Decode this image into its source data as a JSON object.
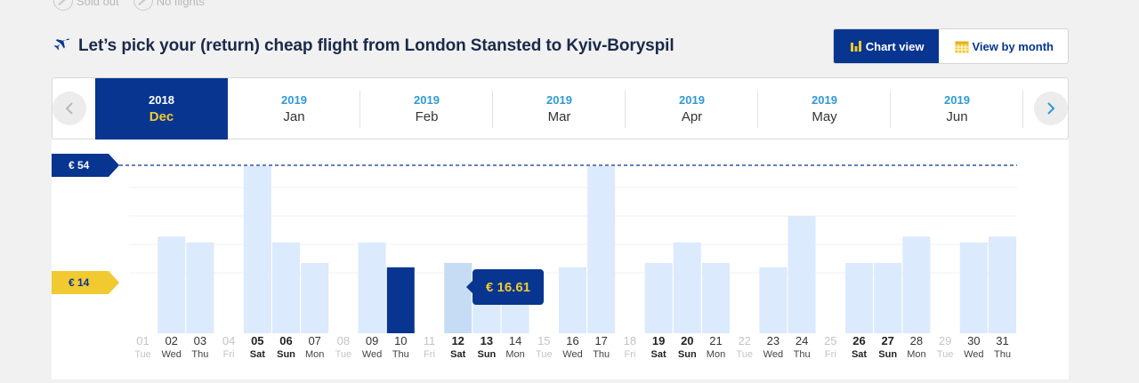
{
  "legend": [
    {
      "label": "Sold out",
      "icon": "sold-out-icon"
    },
    {
      "label": "No flights",
      "icon": "no-flights-icon"
    }
  ],
  "header": {
    "title": "Let’s pick your (return) cheap flight from London Stansted to Kyiv-Boryspil",
    "chart_view_label": "Chart view",
    "month_view_label": "View by month"
  },
  "months": [
    {
      "year": "2018",
      "month": "Dec",
      "active": true
    },
    {
      "year": "2019",
      "month": "Jan"
    },
    {
      "year": "2019",
      "month": "Feb"
    },
    {
      "year": "2019",
      "month": "Mar"
    },
    {
      "year": "2019",
      "month": "Apr"
    },
    {
      "year": "2019",
      "month": "May"
    },
    {
      "year": "2019",
      "month": "Jun"
    }
  ],
  "price_max_label": "€ 54",
  "price_min_label": "€ 14",
  "tooltip": "€ 16.61",
  "colors": {
    "navy": "#073590",
    "yellow": "#f1c931",
    "bar": "#dbeafc",
    "bar_hover": "#c6dcf4",
    "muted": "#c4c4c4"
  },
  "chart_data": {
    "type": "bar",
    "price_range": [
      14,
      54
    ],
    "days": [
      {
        "d": "01",
        "w": "Tue",
        "p": null,
        "s": "disabled"
      },
      {
        "d": "02",
        "w": "Wed",
        "p": 30
      },
      {
        "d": "03",
        "w": "Thu",
        "p": 28
      },
      {
        "d": "04",
        "w": "Fri",
        "p": null,
        "s": "disabled"
      },
      {
        "d": "05",
        "w": "Sat",
        "p": 54,
        "s": "weekend"
      },
      {
        "d": "06",
        "w": "Sun",
        "p": 28,
        "s": "weekend"
      },
      {
        "d": "07",
        "w": "Mon",
        "p": 21
      },
      {
        "d": "08",
        "w": "Tue",
        "p": null,
        "s": "disabled"
      },
      {
        "d": "09",
        "w": "Wed",
        "p": 28
      },
      {
        "d": "10",
        "w": "Thu",
        "p": 19.5,
        "selected": true
      },
      {
        "d": "11",
        "w": "Fri",
        "p": null,
        "s": "disabled"
      },
      {
        "d": "12",
        "w": "Sat",
        "p": 21,
        "s": "weekend",
        "hover": true
      },
      {
        "d": "13",
        "w": "Sun",
        "p": 16.61,
        "s": "weekend"
      },
      {
        "d": "14",
        "w": "Mon",
        "p": 16.61
      },
      {
        "d": "15",
        "w": "Tue",
        "p": null,
        "s": "disabled"
      },
      {
        "d": "16",
        "w": "Wed",
        "p": 19.5
      },
      {
        "d": "17",
        "w": "Thu",
        "p": 54
      },
      {
        "d": "18",
        "w": "Fri",
        "p": null,
        "s": "disabled"
      },
      {
        "d": "19",
        "w": "Sat",
        "p": 21,
        "s": "weekend"
      },
      {
        "d": "20",
        "w": "Sun",
        "p": 28,
        "s": "weekend"
      },
      {
        "d": "21",
        "w": "Mon",
        "p": 21
      },
      {
        "d": "22",
        "w": "Tue",
        "p": null,
        "s": "disabled"
      },
      {
        "d": "23",
        "w": "Wed",
        "p": 19.5
      },
      {
        "d": "24",
        "w": "Thu",
        "p": 37
      },
      {
        "d": "25",
        "w": "Fri",
        "p": null,
        "s": "disabled"
      },
      {
        "d": "26",
        "w": "Sat",
        "p": 21,
        "s": "weekend"
      },
      {
        "d": "27",
        "w": "Sun",
        "p": 21,
        "s": "weekend"
      },
      {
        "d": "28",
        "w": "Mon",
        "p": 30
      },
      {
        "d": "29",
        "w": "Tue",
        "p": null,
        "s": "disabled"
      },
      {
        "d": "30",
        "w": "Wed",
        "p": 28
      },
      {
        "d": "31",
        "w": "Thu",
        "p": 30
      }
    ]
  }
}
